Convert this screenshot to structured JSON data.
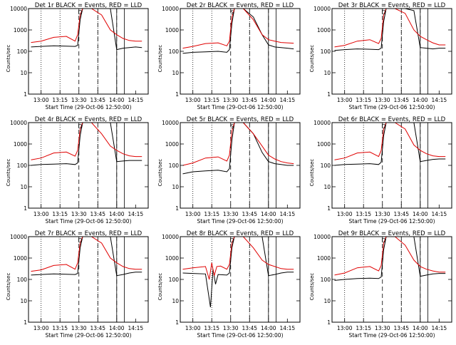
{
  "figure": {
    "y_label": "Counts/sec",
    "x_label": "Start Time (29-Oct-06 12:50:00)",
    "x_ticks": [
      "13:00",
      "13:15",
      "13:30",
      "13:45",
      "14:00",
      "14:15"
    ],
    "y_ticks": [
      "1",
      "10",
      "100",
      "1000",
      "10000"
    ],
    "colors": {
      "events": "#000000",
      "lld": "#e00000",
      "axes": "#000000"
    },
    "markers": {
      "dotted": [
        "13:00",
        "13:15",
        "13:45"
      ],
      "dashed": [
        "13:30",
        "13:45",
        "14:00"
      ],
      "solid": [
        "14:00",
        "14:06"
      ]
    }
  },
  "chart_data": [
    {
      "title": "Det 1r BLACK = Events, RED = LLD",
      "flags": "D",
      "type": "line",
      "y_scale": "log",
      "ylim": [
        1,
        10000
      ],
      "series": [
        {
          "name": "BLACK = Events",
          "color": "#000000",
          "x": [
            "12:52",
            "13:00",
            "13:10",
            "13:20",
            "13:27",
            "13:29",
            "13:31",
            "13:33",
            "13:40",
            "13:48",
            "13:55",
            "14:00",
            "14:05",
            "14:10",
            "14:15",
            "14:20"
          ],
          "y": [
            160,
            170,
            180,
            175,
            170,
            190,
            3000,
            10000,
            10000,
            10000,
            10000,
            120,
            140,
            150,
            160,
            150
          ]
        },
        {
          "name": "RED = LLD",
          "color": "#e00000",
          "x": [
            "12:52",
            "13:00",
            "13:10",
            "13:20",
            "13:27",
            "13:29",
            "13:31",
            "13:33",
            "13:40",
            "13:48",
            "13:55",
            "14:00",
            "14:05",
            "14:10",
            "14:15",
            "14:20"
          ],
          "y": [
            260,
            300,
            450,
            500,
            300,
            600,
            5000,
            10000,
            10000,
            5000,
            1000,
            600,
            400,
            320,
            300,
            300
          ]
        }
      ]
    },
    {
      "title": "Det 2r BLACK = Events, RED = LLD",
      "flags": "S",
      "type": "line",
      "y_scale": "log",
      "ylim": [
        1,
        10000
      ],
      "series": [
        {
          "name": "BLACK = Events",
          "color": "#000000",
          "x": [
            "12:52",
            "13:00",
            "13:10",
            "13:20",
            "13:27",
            "13:29",
            "13:31",
            "13:33",
            "13:40",
            "13:48",
            "13:55",
            "14:00",
            "14:05",
            "14:10",
            "14:15",
            "14:20"
          ],
          "y": [
            80,
            90,
            95,
            100,
            90,
            120,
            2000,
            10000,
            10000,
            4000,
            600,
            200,
            160,
            150,
            140,
            130
          ]
        },
        {
          "name": "RED = LLD",
          "color": "#e00000",
          "x": [
            "12:52",
            "13:00",
            "13:10",
            "13:20",
            "13:27",
            "13:29",
            "13:31",
            "13:33",
            "13:40",
            "13:48",
            "13:55",
            "14:00",
            "14:05",
            "14:10",
            "14:15",
            "14:20"
          ],
          "y": [
            140,
            170,
            230,
            250,
            180,
            300,
            4000,
            10000,
            10000,
            3000,
            600,
            350,
            300,
            260,
            250,
            240
          ]
        }
      ]
    },
    {
      "title": "Det 3r BLACK = Events, RED = LLD",
      "flags": "D",
      "type": "line",
      "y_scale": "log",
      "ylim": [
        1,
        10000
      ],
      "series": [
        {
          "name": "BLACK = Events",
          "color": "#000000",
          "x": [
            "12:52",
            "13:00",
            "13:10",
            "13:20",
            "13:27",
            "13:29",
            "13:31",
            "13:33",
            "13:40",
            "13:48",
            "13:55",
            "14:00",
            "14:05",
            "14:10",
            "14:15",
            "14:20"
          ],
          "y": [
            110,
            120,
            130,
            125,
            120,
            140,
            2500,
            10000,
            10000,
            10000,
            8000,
            150,
            140,
            130,
            140,
            140
          ]
        },
        {
          "name": "RED = LLD",
          "color": "#e00000",
          "x": [
            "12:52",
            "13:00",
            "13:10",
            "13:20",
            "13:27",
            "13:29",
            "13:31",
            "13:33",
            "13:40",
            "13:48",
            "13:55",
            "14:00",
            "14:05",
            "14:10",
            "14:15",
            "14:20"
          ],
          "y": [
            160,
            190,
            300,
            350,
            230,
            400,
            5000,
            10000,
            10000,
            6000,
            1000,
            500,
            350,
            250,
            200,
            200
          ]
        }
      ]
    },
    {
      "title": "Det 4r BLACK = Events, RED = LLD",
      "flags": "D",
      "type": "line",
      "y_scale": "log",
      "ylim": [
        1,
        10000
      ],
      "series": [
        {
          "name": "BLACK = Events",
          "color": "#000000",
          "x": [
            "12:52",
            "13:00",
            "13:10",
            "13:20",
            "13:27",
            "13:29",
            "13:31",
            "13:33",
            "13:40",
            "13:48",
            "13:55",
            "14:00",
            "14:05",
            "14:10",
            "14:15",
            "14:20"
          ],
          "y": [
            100,
            110,
            115,
            120,
            110,
            130,
            2500,
            10000,
            10000,
            10000,
            10000,
            150,
            160,
            170,
            170,
            170
          ]
        },
        {
          "name": "RED = LLD",
          "color": "#e00000",
          "x": [
            "12:52",
            "13:00",
            "13:10",
            "13:20",
            "13:27",
            "13:29",
            "13:31",
            "13:33",
            "13:40",
            "13:48",
            "13:55",
            "14:00",
            "14:05",
            "14:10",
            "14:15",
            "14:20"
          ],
          "y": [
            180,
            220,
            380,
            420,
            270,
            500,
            5000,
            10000,
            10000,
            3000,
            800,
            500,
            350,
            280,
            260,
            260
          ]
        }
      ]
    },
    {
      "title": "Det 5r BLACK = Events, RED = LLD",
      "flags": "S",
      "type": "line",
      "y_scale": "log",
      "ylim": [
        1,
        10000
      ],
      "series": [
        {
          "name": "BLACK = Events",
          "color": "#000000",
          "x": [
            "12:52",
            "13:00",
            "13:10",
            "13:20",
            "13:27",
            "13:29",
            "13:31",
            "13:33",
            "13:40",
            "13:48",
            "13:55",
            "14:00",
            "14:05",
            "14:10",
            "14:15",
            "14:20"
          ],
          "y": [
            40,
            50,
            55,
            60,
            50,
            70,
            1500,
            10000,
            10000,
            3000,
            400,
            150,
            120,
            110,
            100,
            100
          ]
        },
        {
          "name": "RED = LLD",
          "color": "#e00000",
          "x": [
            "12:52",
            "13:00",
            "13:10",
            "13:20",
            "13:27",
            "13:29",
            "13:31",
            "13:33",
            "13:40",
            "13:48",
            "13:55",
            "14:00",
            "14:05",
            "14:10",
            "14:15",
            "14:20"
          ],
          "y": [
            100,
            130,
            220,
            250,
            160,
            300,
            4000,
            10000,
            10000,
            3000,
            800,
            300,
            200,
            150,
            130,
            120
          ]
        }
      ]
    },
    {
      "title": "Det 6r BLACK = Events, RED = LLD",
      "flags": "D",
      "type": "line",
      "y_scale": "log",
      "ylim": [
        1,
        10000
      ],
      "series": [
        {
          "name": "BLACK = Events",
          "color": "#000000",
          "x": [
            "12:52",
            "13:00",
            "13:10",
            "13:20",
            "13:27",
            "13:29",
            "13:31",
            "13:33",
            "13:40",
            "13:48",
            "13:55",
            "14:00",
            "14:05",
            "14:10",
            "14:15",
            "14:20"
          ],
          "y": [
            100,
            110,
            115,
            120,
            110,
            140,
            2500,
            10000,
            10000,
            10000,
            10000,
            150,
            170,
            190,
            200,
            200
          ]
        },
        {
          "name": "RED = LLD",
          "color": "#e00000",
          "x": [
            "12:52",
            "13:00",
            "13:10",
            "13:20",
            "13:27",
            "13:29",
            "13:31",
            "13:33",
            "13:40",
            "13:48",
            "13:55",
            "14:00",
            "14:05",
            "14:10",
            "14:15",
            "14:20"
          ],
          "y": [
            180,
            220,
            380,
            420,
            260,
            500,
            5000,
            10000,
            10000,
            5000,
            900,
            500,
            350,
            280,
            260,
            260
          ]
        }
      ]
    },
    {
      "title": "Det 7r BLACK = Events, RED = LLD",
      "flags": "D",
      "type": "line",
      "y_scale": "log",
      "ylim": [
        1,
        10000
      ],
      "series": [
        {
          "name": "BLACK = Events",
          "color": "#000000",
          "x": [
            "12:52",
            "13:00",
            "13:10",
            "13:20",
            "13:27",
            "13:29",
            "13:31",
            "13:33",
            "13:40",
            "13:48",
            "13:55",
            "14:00",
            "14:05",
            "14:10",
            "14:15",
            "14:20"
          ],
          "y": [
            160,
            170,
            180,
            175,
            170,
            190,
            3000,
            10000,
            10000,
            10000,
            10000,
            150,
            170,
            200,
            220,
            220
          ]
        },
        {
          "name": "RED = LLD",
          "color": "#e00000",
          "x": [
            "12:52",
            "13:00",
            "13:10",
            "13:20",
            "13:27",
            "13:29",
            "13:31",
            "13:33",
            "13:40",
            "13:48",
            "13:55",
            "14:00",
            "14:05",
            "14:10",
            "14:15",
            "14:20"
          ],
          "y": [
            240,
            280,
            450,
            500,
            300,
            600,
            5000,
            10000,
            10000,
            5000,
            1000,
            600,
            400,
            320,
            300,
            300
          ]
        }
      ]
    },
    {
      "title": "Det 8r BLACK = Events, RED = LLD",
      "flags": "D",
      "type": "line",
      "y_scale": "log",
      "ylim": [
        1,
        10000
      ],
      "series": [
        {
          "name": "BLACK = Events",
          "color": "#000000",
          "x": [
            "12:52",
            "13:00",
            "13:10",
            "13:14",
            "13:16",
            "13:18",
            "13:20",
            "13:27",
            "13:29",
            "13:31",
            "13:33",
            "13:40",
            "13:48",
            "13:55",
            "14:00",
            "14:05",
            "14:10",
            "14:15",
            "14:20"
          ],
          "y": [
            200,
            190,
            180,
            5,
            300,
            60,
            170,
            160,
            200,
            3000,
            10000,
            10000,
            10000,
            10000,
            150,
            170,
            200,
            220,
            220
          ]
        },
        {
          "name": "RED = LLD",
          "color": "#e00000",
          "x": [
            "12:52",
            "13:00",
            "13:10",
            "13:13",
            "13:15",
            "13:17",
            "13:19",
            "13:22",
            "13:27",
            "13:29",
            "13:31",
            "13:33",
            "13:40",
            "13:48",
            "13:55",
            "14:00",
            "14:05",
            "14:10",
            "14:15",
            "14:20"
          ],
          "y": [
            300,
            350,
            400,
            100,
            600,
            150,
            400,
            420,
            300,
            500,
            5000,
            10000,
            10000,
            3000,
            800,
            500,
            400,
            320,
            300,
            300
          ]
        }
      ]
    },
    {
      "title": "Det 9r BLACK = Events, RED = LLD",
      "flags": "D",
      "type": "line",
      "y_scale": "log",
      "ylim": [
        1,
        10000
      ],
      "series": [
        {
          "name": "BLACK = Events",
          "color": "#000000",
          "x": [
            "12:52",
            "13:00",
            "13:10",
            "13:20",
            "13:27",
            "13:29",
            "13:31",
            "13:33",
            "13:40",
            "13:48",
            "13:55",
            "14:00",
            "14:05",
            "14:10",
            "14:15",
            "14:20"
          ],
          "y": [
            90,
            100,
            110,
            115,
            110,
            130,
            2500,
            10000,
            10000,
            10000,
            10000,
            140,
            160,
            180,
            190,
            190
          ]
        },
        {
          "name": "RED = LLD",
          "color": "#e00000",
          "x": [
            "12:52",
            "13:00",
            "13:10",
            "13:20",
            "13:27",
            "13:29",
            "13:31",
            "13:33",
            "13:40",
            "13:48",
            "13:55",
            "14:00",
            "14:05",
            "14:10",
            "14:15",
            "14:20"
          ],
          "y": [
            160,
            200,
            350,
            400,
            250,
            450,
            5000,
            10000,
            10000,
            4000,
            800,
            400,
            300,
            250,
            220,
            220
          ]
        }
      ]
    }
  ]
}
